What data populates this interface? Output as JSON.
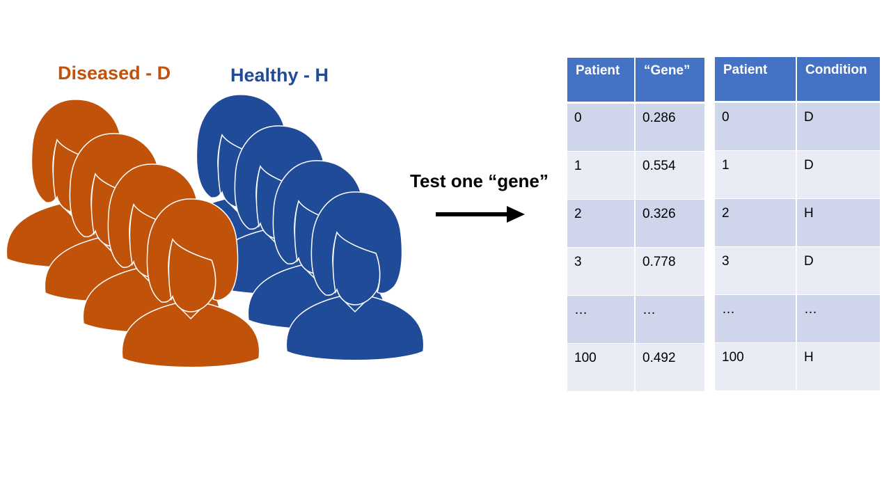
{
  "groups": {
    "diseased": {
      "label": "Diseased - D",
      "color": "#c0520a"
    },
    "healthy": {
      "label": "Healthy - H",
      "color": "#1f4b99"
    }
  },
  "arrow_label": "Test one “gene”",
  "gene_table": {
    "headers": [
      "Patient",
      "“Gene”"
    ],
    "rows": [
      [
        "0",
        "0.286"
      ],
      [
        "1",
        "0.554"
      ],
      [
        "2",
        "0.326"
      ],
      [
        "3",
        "0.778"
      ],
      [
        "…",
        "…"
      ],
      [
        "100",
        "0.492"
      ]
    ]
  },
  "condition_table": {
    "headers": [
      "Patient",
      "Condition"
    ],
    "rows": [
      [
        "0",
        "D"
      ],
      [
        "1",
        "D"
      ],
      [
        "2",
        "H"
      ],
      [
        "3",
        "D"
      ],
      [
        "…",
        "…"
      ],
      [
        "100",
        "H"
      ]
    ]
  },
  "colors": {
    "table_header": "#4472c4",
    "row_dark": "#cfd5ea",
    "row_light": "#e9ebf5"
  }
}
